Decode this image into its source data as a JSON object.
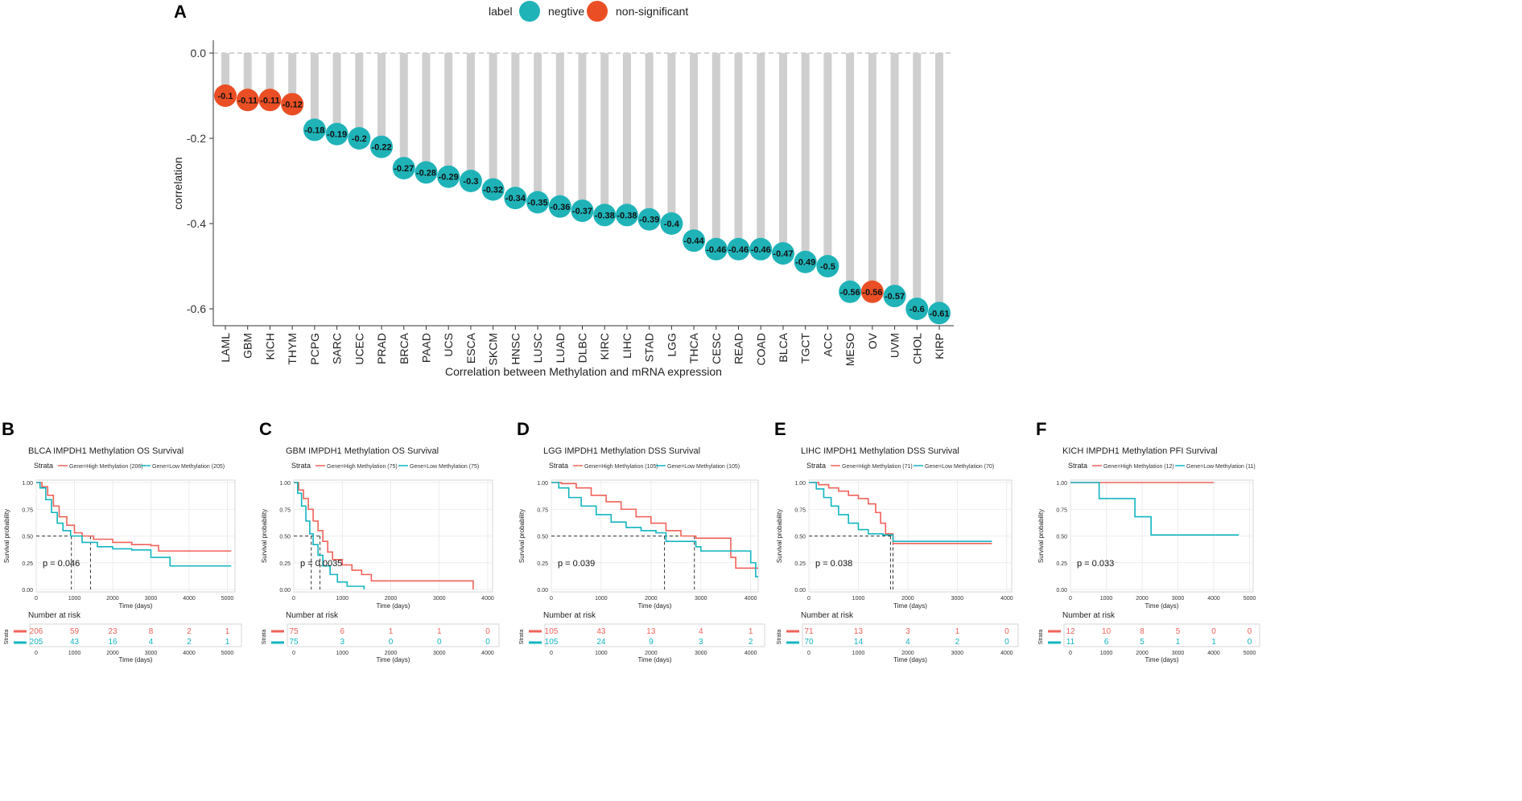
{
  "chart_data": [
    {
      "panel": "A",
      "type": "lollipop",
      "xlabel": "Correlation between Methylation and mRNA expression",
      "ylabel": "correlation",
      "ylim": [
        -0.62,
        0.0
      ],
      "yticks": [
        "0.0",
        "-0.2",
        "-0.4",
        "-0.6"
      ],
      "ytick_values": [
        0.0,
        -0.2,
        -0.4,
        -0.6
      ],
      "legend": {
        "title": "label",
        "entries": [
          {
            "name": "negtive",
            "color": "#1fb3b8"
          },
          {
            "name": "non-significant",
            "color": "#ea4e24"
          }
        ],
        "position": "top"
      },
      "points": [
        {
          "cancer": "LAML",
          "value": -0.1,
          "text": "-0.1",
          "group": "non-significant"
        },
        {
          "cancer": "GBM",
          "value": -0.11,
          "text": "-0.11",
          "group": "non-significant"
        },
        {
          "cancer": "KICH",
          "value": -0.11,
          "text": "-0.11",
          "group": "non-significant"
        },
        {
          "cancer": "THYM",
          "value": -0.12,
          "text": "-0.12",
          "group": "non-significant"
        },
        {
          "cancer": "PCPG",
          "value": -0.18,
          "text": "-0.18",
          "group": "negtive"
        },
        {
          "cancer": "SARC",
          "value": -0.19,
          "text": "-0.19",
          "group": "negtive"
        },
        {
          "cancer": "UCEC",
          "value": -0.2,
          "text": "-0.2",
          "group": "negtive"
        },
        {
          "cancer": "PRAD",
          "value": -0.22,
          "text": "-0.22",
          "group": "negtive"
        },
        {
          "cancer": "BRCA",
          "value": -0.27,
          "text": "-0.27",
          "group": "negtive"
        },
        {
          "cancer": "PAAD",
          "value": -0.28,
          "text": "-0.28",
          "group": "negtive"
        },
        {
          "cancer": "UCS",
          "value": -0.29,
          "text": "-0.29",
          "group": "negtive"
        },
        {
          "cancer": "ESCA",
          "value": -0.3,
          "text": "-0.3",
          "group": "negtive"
        },
        {
          "cancer": "SKCM",
          "value": -0.32,
          "text": "-0.32",
          "group": "negtive"
        },
        {
          "cancer": "HNSC",
          "value": -0.34,
          "text": "-0.34",
          "group": "negtive"
        },
        {
          "cancer": "LUSC",
          "value": -0.35,
          "text": "-0.35",
          "group": "negtive"
        },
        {
          "cancer": "LUAD",
          "value": -0.36,
          "text": "-0.36",
          "group": "negtive"
        },
        {
          "cancer": "DLBC",
          "value": -0.37,
          "text": "-0.37",
          "group": "negtive"
        },
        {
          "cancer": "KIRC",
          "value": -0.38,
          "text": "-0.38",
          "group": "negtive"
        },
        {
          "cancer": "LIHC",
          "value": -0.38,
          "text": "-0.38",
          "group": "negtive"
        },
        {
          "cancer": "STAD",
          "value": -0.39,
          "text": "-0.39",
          "group": "negtive"
        },
        {
          "cancer": "LGG",
          "value": -0.4,
          "text": "-0.4",
          "group": "negtive"
        },
        {
          "cancer": "THCA",
          "value": -0.44,
          "text": "-0.44",
          "group": "negtive"
        },
        {
          "cancer": "CESC",
          "value": -0.46,
          "text": "-0.46",
          "group": "negtive"
        },
        {
          "cancer": "READ",
          "value": -0.46,
          "text": "-0.46",
          "group": "negtive"
        },
        {
          "cancer": "COAD",
          "value": -0.46,
          "text": "-0.46",
          "group": "negtive"
        },
        {
          "cancer": "BLCA",
          "value": -0.47,
          "text": "-0.47",
          "group": "negtive"
        },
        {
          "cancer": "TGCT",
          "value": -0.49,
          "text": "-0.49",
          "group": "negtive"
        },
        {
          "cancer": "ACC",
          "value": -0.5,
          "text": "-0.5",
          "group": "negtive"
        },
        {
          "cancer": "MESO",
          "value": -0.56,
          "text": "-0.56",
          "group": "negtive"
        },
        {
          "cancer": "OV",
          "value": -0.56,
          "text": "-0.56",
          "group": "non-significant"
        },
        {
          "cancer": "UVM",
          "value": -0.57,
          "text": "-0.57",
          "group": "negtive"
        },
        {
          "cancer": "CHOL",
          "value": -0.6,
          "text": "-0.6",
          "group": "negtive"
        },
        {
          "cancer": "KIRP",
          "value": -0.61,
          "text": "-0.61",
          "group": "negtive"
        }
      ]
    },
    {
      "panel": "B",
      "type": "km",
      "title": "BLCA IMPDH1 Methylation OS Survival",
      "strata_label": "Strata",
      "legend_high": "Gene=High Methylation (206)",
      "legend_low": "Gene=Low Methylation (205)",
      "ylabel": "Survival probability",
      "xlabel": "Time (days)",
      "xmax": 5200,
      "xticks": [
        0,
        1000,
        2000,
        3000,
        4000,
        5000
      ],
      "yticks": [
        "0.00",
        "0.25",
        "0.50",
        "0.75",
        "1.00"
      ],
      "pvalue": "p = 0.046",
      "medians": [
        920,
        1420
      ],
      "high_curve": [
        [
          0,
          1
        ],
        [
          150,
          0.96
        ],
        [
          300,
          0.88
        ],
        [
          450,
          0.78
        ],
        [
          600,
          0.68
        ],
        [
          800,
          0.6
        ],
        [
          1000,
          0.53
        ],
        [
          1200,
          0.5
        ],
        [
          1500,
          0.47
        ],
        [
          2000,
          0.44
        ],
        [
          2500,
          0.42
        ],
        [
          3000,
          0.41
        ],
        [
          3200,
          0.36
        ],
        [
          5100,
          0.36
        ]
      ],
      "low_curve": [
        [
          0,
          1
        ],
        [
          100,
          0.95
        ],
        [
          250,
          0.84
        ],
        [
          400,
          0.72
        ],
        [
          550,
          0.62
        ],
        [
          700,
          0.55
        ],
        [
          900,
          0.5
        ],
        [
          1200,
          0.44
        ],
        [
          1600,
          0.4
        ],
        [
          2000,
          0.38
        ],
        [
          2500,
          0.37
        ],
        [
          3000,
          0.3
        ],
        [
          3500,
          0.22
        ],
        [
          5100,
          0.22
        ]
      ],
      "risk_title": "Number at risk",
      "risk_ylabel": "Strata",
      "risk_high": [
        "206",
        "59",
        "23",
        "8",
        "2",
        "1"
      ],
      "risk_low": [
        "205",
        "43",
        "16",
        "4",
        "2",
        "1"
      ]
    },
    {
      "panel": "C",
      "type": "km",
      "title": "GBM IMPDH1 Methylation OS Survival",
      "strata_label": "Strata",
      "legend_high": "Gene=High Methylation (75)",
      "legend_low": "Gene=Low Methylation (75)",
      "ylabel": "Survival probability",
      "xlabel": "Time (days)",
      "xmax": 4100,
      "xticks": [
        0,
        1000,
        2000,
        3000,
        4000
      ],
      "yticks": [
        "0.00",
        "0.25",
        "0.50",
        "0.75",
        "1.00"
      ],
      "pvalue": "p = 0.0035",
      "medians": [
        360,
        540
      ],
      "high_curve": [
        [
          0,
          1
        ],
        [
          100,
          0.93
        ],
        [
          200,
          0.85
        ],
        [
          300,
          0.75
        ],
        [
          400,
          0.64
        ],
        [
          500,
          0.55
        ],
        [
          600,
          0.45
        ],
        [
          700,
          0.35
        ],
        [
          800,
          0.28
        ],
        [
          1000,
          0.23
        ],
        [
          1200,
          0.18
        ],
        [
          1400,
          0.14
        ],
        [
          1600,
          0.08
        ],
        [
          3700,
          0.08
        ],
        [
          3700,
          0.0
        ]
      ],
      "low_curve": [
        [
          0,
          1
        ],
        [
          80,
          0.9
        ],
        [
          160,
          0.78
        ],
        [
          250,
          0.64
        ],
        [
          330,
          0.52
        ],
        [
          400,
          0.42
        ],
        [
          500,
          0.32
        ],
        [
          600,
          0.22
        ],
        [
          750,
          0.14
        ],
        [
          900,
          0.07
        ],
        [
          1100,
          0.03
        ],
        [
          1450,
          0.0
        ]
      ],
      "risk_title": "Number at risk",
      "risk_ylabel": "Strata",
      "risk_high": [
        "75",
        "6",
        "1",
        "1",
        "0"
      ],
      "risk_low": [
        "75",
        "3",
        "0",
        "0",
        "0"
      ]
    },
    {
      "panel": "D",
      "type": "km",
      "title": "LGG IMPDH1 Methylation DSS Survival",
      "strata_label": "Strata",
      "legend_high": "Gene=High Methylation (105)",
      "legend_low": "Gene=Low Methylation (105)",
      "ylabel": "Survival probability",
      "xlabel": "Time (days)",
      "xmax": 4150,
      "xticks": [
        0,
        1000,
        2000,
        3000,
        4000
      ],
      "yticks": [
        "0.00",
        "0.25",
        "0.50",
        "0.75",
        "1.00"
      ],
      "pvalue": "p = 0.039",
      "medians": [
        2270,
        2870
      ],
      "high_curve": [
        [
          0,
          1
        ],
        [
          200,
          0.99
        ],
        [
          500,
          0.95
        ],
        [
          800,
          0.88
        ],
        [
          1100,
          0.82
        ],
        [
          1400,
          0.75
        ],
        [
          1700,
          0.68
        ],
        [
          2000,
          0.62
        ],
        [
          2300,
          0.55
        ],
        [
          2600,
          0.5
        ],
        [
          2900,
          0.48
        ],
        [
          3600,
          0.3
        ],
        [
          3700,
          0.2
        ],
        [
          4150,
          0.2
        ]
      ],
      "low_curve": [
        [
          0,
          1
        ],
        [
          150,
          0.95
        ],
        [
          350,
          0.86
        ],
        [
          600,
          0.78
        ],
        [
          900,
          0.7
        ],
        [
          1200,
          0.63
        ],
        [
          1500,
          0.58
        ],
        [
          1800,
          0.55
        ],
        [
          2100,
          0.53
        ],
        [
          2300,
          0.45
        ],
        [
          2900,
          0.4
        ],
        [
          3000,
          0.36
        ],
        [
          4000,
          0.25
        ],
        [
          4100,
          0.12
        ],
        [
          4150,
          0.12
        ]
      ],
      "risk_title": "Number at risk",
      "risk_ylabel": "Strata",
      "risk_high": [
        "105",
        "43",
        "13",
        "4",
        "1"
      ],
      "risk_low": [
        "105",
        "24",
        "9",
        "3",
        "2"
      ]
    },
    {
      "panel": "E",
      "type": "km",
      "title": "LIHC IMPDH1 Methylation DSS Survival",
      "strata_label": "Strata",
      "legend_high": "Gene=High Methylation (71)",
      "legend_low": "Gene=Low Methylation (70)",
      "ylabel": "Survival probability",
      "xlabel": "Time (days)",
      "xmax": 4100,
      "xticks": [
        0,
        1000,
        2000,
        3000,
        4000
      ],
      "yticks": [
        "0.00",
        "0.25",
        "0.50",
        "0.75",
        "1.00"
      ],
      "pvalue": "p = 0.038",
      "medians": [
        1650,
        1700
      ],
      "high_curve": [
        [
          0,
          1
        ],
        [
          200,
          0.98
        ],
        [
          400,
          0.95
        ],
        [
          600,
          0.92
        ],
        [
          800,
          0.88
        ],
        [
          1000,
          0.85
        ],
        [
          1200,
          0.8
        ],
        [
          1350,
          0.72
        ],
        [
          1450,
          0.62
        ],
        [
          1550,
          0.52
        ],
        [
          1700,
          0.43
        ],
        [
          3700,
          0.43
        ]
      ],
      "low_curve": [
        [
          0,
          1
        ],
        [
          150,
          0.94
        ],
        [
          300,
          0.86
        ],
        [
          450,
          0.78
        ],
        [
          600,
          0.7
        ],
        [
          800,
          0.62
        ],
        [
          1000,
          0.56
        ],
        [
          1200,
          0.52
        ],
        [
          1500,
          0.51
        ],
        [
          1700,
          0.45
        ],
        [
          3700,
          0.45
        ]
      ],
      "risk_title": "Number at risk",
      "risk_ylabel": "Strata",
      "risk_high": [
        "71",
        "13",
        "3",
        "1",
        "0"
      ],
      "risk_low": [
        "70",
        "14",
        "4",
        "2",
        "0"
      ]
    },
    {
      "panel": "F",
      "type": "km",
      "title": "KICH IMPDH1 Methylation PFI Survival",
      "strata_label": "Strata",
      "legend_high": "Gene=High Methylation (12)",
      "legend_low": "Gene=Low Methylation (11)",
      "ylabel": "Survival probability",
      "xlabel": "Time (days)",
      "xmax": 5100,
      "xticks": [
        0,
        1000,
        2000,
        3000,
        4000,
        5000
      ],
      "yticks": [
        "0.00",
        "0.25",
        "0.50",
        "0.75",
        "1.00"
      ],
      "pvalue": "p = 0.033",
      "medians": [],
      "high_curve": [
        [
          0,
          1
        ],
        [
          4000,
          1
        ]
      ],
      "low_curve": [
        [
          0,
          1
        ],
        [
          800,
          1
        ],
        [
          800,
          0.85
        ],
        [
          1800,
          0.85
        ],
        [
          1800,
          0.68
        ],
        [
          2250,
          0.68
        ],
        [
          2250,
          0.51
        ],
        [
          4700,
          0.51
        ]
      ],
      "risk_title": "Number at risk",
      "risk_ylabel": "Strata",
      "risk_high": [
        "12",
        "10",
        "8",
        "5",
        "0",
        "0"
      ],
      "risk_low": [
        "11",
        "6",
        "5",
        "1",
        "1",
        "0"
      ]
    }
  ],
  "panel_letters": [
    "A",
    "B",
    "C",
    "D",
    "E",
    "F"
  ],
  "colors": {
    "high": "#f0625a",
    "low": "#12b5c0",
    "negtive": "#1fb3b8",
    "non_significant": "#ea4e24"
  }
}
